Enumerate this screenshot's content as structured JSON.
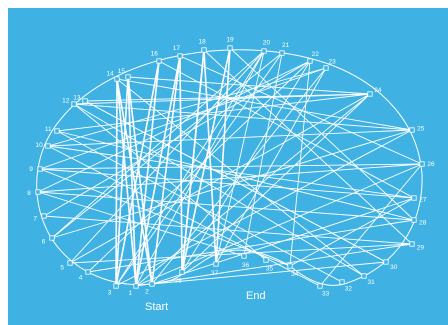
{
  "diagram": {
    "background_color": "#3fb2e3",
    "line_color": "#ffffff",
    "start_label": "Start",
    "end_label": "End",
    "pins": [
      {
        "label": "1"
      },
      {
        "label": "2"
      },
      {
        "label": "3"
      },
      {
        "label": "4"
      },
      {
        "label": "5"
      },
      {
        "label": "6"
      },
      {
        "label": "7"
      },
      {
        "label": "8"
      },
      {
        "label": "9"
      },
      {
        "label": "10"
      },
      {
        "label": "11"
      },
      {
        "label": "12"
      },
      {
        "label": "13"
      },
      {
        "label": "14"
      },
      {
        "label": "15"
      },
      {
        "label": "16"
      },
      {
        "label": "17"
      },
      {
        "label": "18"
      },
      {
        "label": "19"
      },
      {
        "label": "20"
      },
      {
        "label": "21"
      },
      {
        "label": "22"
      },
      {
        "label": "23"
      },
      {
        "label": "24"
      },
      {
        "label": "25"
      },
      {
        "label": "26"
      },
      {
        "label": "27"
      },
      {
        "label": "28"
      },
      {
        "label": "29"
      },
      {
        "label": "30"
      },
      {
        "label": "31"
      },
      {
        "label": "32"
      },
      {
        "label": "33"
      },
      {
        "label": "34"
      },
      {
        "label": "35"
      },
      {
        "label": "36"
      },
      {
        "label": "37"
      },
      {
        "label": "38"
      }
    ]
  }
}
